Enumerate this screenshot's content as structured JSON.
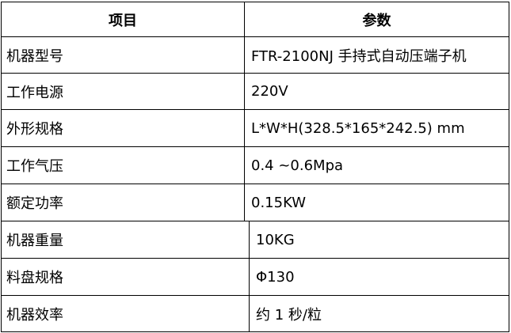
{
  "table": {
    "headers": [
      "项目",
      "参数"
    ],
    "rows": [
      [
        "机器型号",
        "FTR-2100NJ 手持式自动压端子机"
      ],
      [
        "工作电源",
        "220V"
      ],
      [
        "外形规格",
        "L*W*H(328.5*165*242.5) mm"
      ],
      [
        "工作气压",
        "0.4 ~0.6Mpa"
      ],
      [
        "额定功率",
        "0.15KW"
      ],
      [
        "机器重量",
        "10KG"
      ],
      [
        "料盘规格",
        "Φ130"
      ],
      [
        "机器效率",
        "约 1 秒/粒"
      ]
    ]
  }
}
